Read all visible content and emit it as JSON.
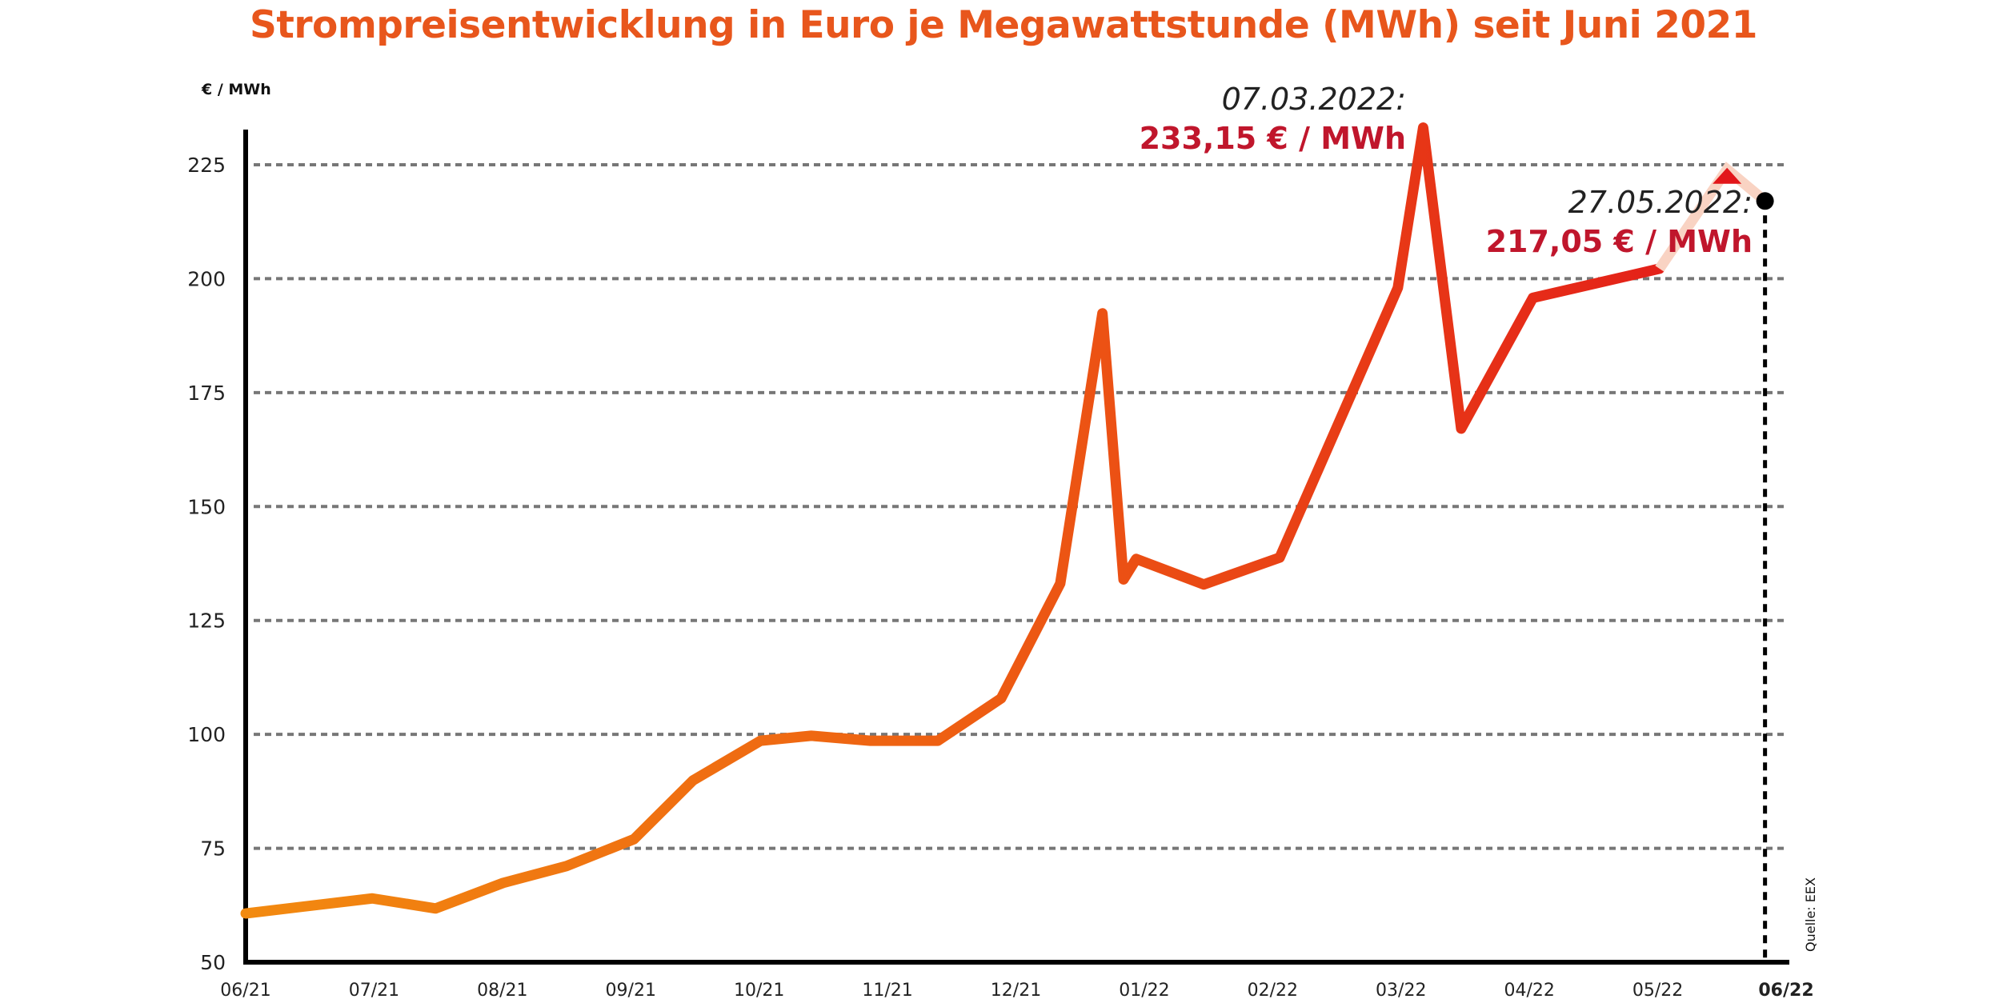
{
  "chart_data": {
    "type": "line",
    "title": "Strompreisentwicklung in Euro je Megawattstunde (MWh) seit Juni 2021",
    "xlabel": "",
    "ylabel": "€ / MWh",
    "ylim": [
      50,
      225
    ],
    "yticks": [
      50,
      75,
      100,
      125,
      150,
      175,
      200,
      225
    ],
    "xtick_labels": [
      "06/21",
      "07/21",
      "08/21",
      "09/21",
      "10/21",
      "11/21",
      "12/21",
      "01/22",
      "02/22",
      "03/22",
      "04/22",
      "05/22",
      "06/22"
    ],
    "grid": "horizontal dotted",
    "colors": {
      "start": "#f28a10",
      "end": "#e2161a",
      "faded": "#f9d3c3",
      "title": "#e8561c",
      "annotation_value": "#c0162c"
    },
    "x": [
      "2021-06-01",
      "2021-07-01",
      "2021-07-16",
      "2021-08-01",
      "2021-08-16",
      "2021-09-01",
      "2021-09-15",
      "2021-10-01",
      "2021-10-13",
      "2021-10-27",
      "2021-11-12",
      "2021-11-27",
      "2021-12-11",
      "2021-12-21",
      "2021-12-26",
      "2021-12-29",
      "2022-01-14",
      "2022-02-01",
      "2022-03-01",
      "2022-03-07",
      "2022-03-16",
      "2022-04-02",
      "2022-05-02",
      "2022-05-18",
      "2022-05-27"
    ],
    "values": [
      60.7,
      64.0,
      61.8,
      67.4,
      71.1,
      77.0,
      89.9,
      98.6,
      99.7,
      98.6,
      98.6,
      107.9,
      133.1,
      192.4,
      134.0,
      138.5,
      132.9,
      138.8,
      198.0,
      233.15,
      167.1,
      195.8,
      202.2,
      224.0,
      217.05
    ],
    "annotations": [
      {
        "date_label": "07.03.2022:",
        "value_label": "233,15 € / MWh"
      },
      {
        "date_label": "27.05.2022:",
        "value_label": "217,05 € / MWh"
      }
    ],
    "source": "Quelle: EEX"
  }
}
